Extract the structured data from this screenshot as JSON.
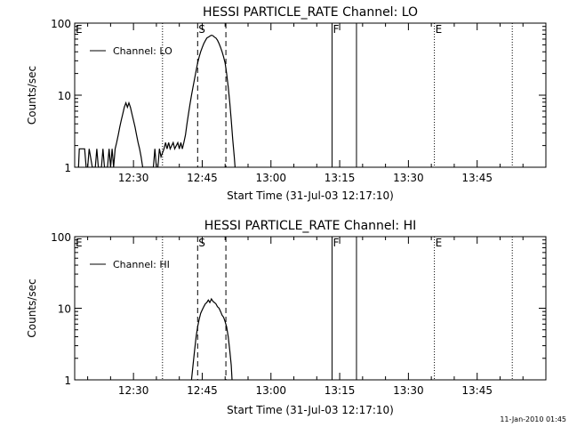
{
  "footer_timestamp": "11-Jan-2010 01:45",
  "chart_data": [
    {
      "type": "line",
      "title": "HESSI PARTICLE_RATE Channel: LO",
      "xlabel": "Start Time (31-Jul-03 12:17:10)",
      "ylabel": "Counts/sec",
      "yscale": "log",
      "ylim": [
        1,
        100
      ],
      "xlim": [
        "12:17:10",
        "14:00:00"
      ],
      "x_ticks": [
        "12:30",
        "12:45",
        "13:00",
        "13:15",
        "13:30",
        "13:45"
      ],
      "y_ticks": [
        "1",
        "10",
        "100"
      ],
      "legend": {
        "label": "Channel: LO",
        "position": "top-left"
      },
      "markers": [
        {
          "label": "E",
          "time": "12:17:10",
          "style": "none"
        },
        {
          "label": "",
          "time": "12:36:20",
          "style": "dotted"
        },
        {
          "label": "S",
          "time": "12:44:00",
          "style": "dashed"
        },
        {
          "label": "",
          "time": "12:50:10",
          "style": "dashed"
        },
        {
          "label": "F",
          "time": "13:13:20",
          "style": "solid"
        },
        {
          "label": "",
          "time": "13:18:40",
          "style": "solid"
        },
        {
          "label": "E",
          "time": "13:35:40",
          "style": "dotted"
        },
        {
          "label": "",
          "time": "13:52:40",
          "style": "dotted"
        }
      ],
      "series": [
        {
          "name": "Channel: LO",
          "points": [
            [
              "12:18:00",
              1.0
            ],
            [
              "12:18:10",
              1.8
            ],
            [
              "12:19:20",
              1.8
            ],
            [
              "12:19:40",
              1.0
            ],
            [
              "12:20:00",
              1.0
            ],
            [
              "12:20:20",
              1.8
            ],
            [
              "12:21:00",
              1.0
            ],
            [
              "12:21:40",
              1.0
            ],
            [
              "12:22:00",
              1.8
            ],
            [
              "12:22:20",
              1.0
            ],
            [
              "12:23:00",
              1.0
            ],
            [
              "12:23:20",
              1.8
            ],
            [
              "12:23:40",
              1.0
            ],
            [
              "12:24:20",
              1.0
            ],
            [
              "12:24:40",
              1.8
            ],
            [
              "12:25:00",
              1.0
            ],
            [
              "12:25:20",
              1.8
            ],
            [
              "12:25:40",
              1.0
            ],
            [
              "12:26:00",
              1.8
            ],
            [
              "12:26:20",
              2.2
            ],
            [
              "12:26:40",
              2.8
            ],
            [
              "12:27:00",
              3.6
            ],
            [
              "12:27:20",
              4.5
            ],
            [
              "12:27:40",
              5.5
            ],
            [
              "12:28:00",
              6.8
            ],
            [
              "12:28:20",
              7.8
            ],
            [
              "12:28:40",
              6.8
            ],
            [
              "12:29:00",
              7.8
            ],
            [
              "12:29:20",
              6.8
            ],
            [
              "12:29:40",
              5.5
            ],
            [
              "12:30:00",
              4.5
            ],
            [
              "12:30:20",
              3.6
            ],
            [
              "12:30:40",
              2.8
            ],
            [
              "12:31:00",
              2.2
            ],
            [
              "12:31:20",
              1.8
            ],
            [
              "12:31:40",
              1.4
            ],
            [
              "12:32:00",
              1.0
            ],
            [
              "12:34:20",
              1.0
            ],
            [
              "12:34:40",
              1.8
            ],
            [
              "12:35:00",
              1.0
            ],
            [
              "12:35:20",
              1.0
            ],
            [
              "12:35:40",
              1.8
            ],
            [
              "12:36:00",
              1.4
            ],
            [
              "12:36:40",
              1.8
            ],
            [
              "12:37:00",
              2.2
            ],
            [
              "12:37:20",
              1.8
            ],
            [
              "12:37:40",
              2.2
            ],
            [
              "12:38:00",
              1.8
            ],
            [
              "12:38:40",
              2.2
            ],
            [
              "12:39:00",
              1.8
            ],
            [
              "12:39:40",
              2.2
            ],
            [
              "12:40:00",
              1.8
            ],
            [
              "12:40:20",
              2.2
            ],
            [
              "12:40:40",
              1.8
            ],
            [
              "12:41:00",
              2.2
            ],
            [
              "12:41:20",
              2.8
            ],
            [
              "12:41:40",
              4.0
            ],
            [
              "12:42:00",
              5.5
            ],
            [
              "12:42:20",
              7.5
            ],
            [
              "12:42:40",
              10.0
            ],
            [
              "12:43:00",
              13.0
            ],
            [
              "12:43:20",
              17.0
            ],
            [
              "12:43:40",
              22.0
            ],
            [
              "12:44:00",
              28.0
            ],
            [
              "12:44:20",
              34.0
            ],
            [
              "12:44:40",
              40.0
            ],
            [
              "12:45:00",
              46.0
            ],
            [
              "12:45:20",
              52.0
            ],
            [
              "12:45:40",
              57.0
            ],
            [
              "12:46:00",
              62.0
            ],
            [
              "12:46:20",
              64.0
            ],
            [
              "12:46:40",
              66.0
            ],
            [
              "12:47:00",
              68.0
            ],
            [
              "12:47:20",
              67.0
            ],
            [
              "12:47:40",
              64.0
            ],
            [
              "12:48:00",
              62.0
            ],
            [
              "12:48:20",
              58.0
            ],
            [
              "12:48:40",
              52.0
            ],
            [
              "12:49:00",
              46.0
            ],
            [
              "12:49:20",
              40.0
            ],
            [
              "12:49:40",
              34.0
            ],
            [
              "12:50:00",
              28.0
            ],
            [
              "12:50:20",
              20.0
            ],
            [
              "12:50:40",
              13.0
            ],
            [
              "12:51:00",
              8.0
            ],
            [
              "12:51:20",
              4.5
            ],
            [
              "12:51:40",
              2.4
            ],
            [
              "12:52:00",
              1.4
            ],
            [
              "12:52:10",
              1.0
            ]
          ]
        }
      ]
    },
    {
      "type": "line",
      "title": "HESSI PARTICLE_RATE Channel: HI",
      "xlabel": "Start Time (31-Jul-03 12:17:10)",
      "ylabel": "Counts/sec",
      "yscale": "log",
      "ylim": [
        1,
        100
      ],
      "xlim": [
        "12:17:10",
        "14:00:00"
      ],
      "x_ticks": [
        "12:30",
        "12:45",
        "13:00",
        "13:15",
        "13:30",
        "13:45"
      ],
      "y_ticks": [
        "1",
        "10",
        "100"
      ],
      "legend": {
        "label": "Channel: HI",
        "position": "top-left"
      },
      "markers": [
        {
          "label": "E",
          "time": "12:17:10",
          "style": "none"
        },
        {
          "label": "",
          "time": "12:36:20",
          "style": "dotted"
        },
        {
          "label": "S",
          "time": "12:44:00",
          "style": "dashed"
        },
        {
          "label": "",
          "time": "12:50:10",
          "style": "dashed"
        },
        {
          "label": "F",
          "time": "13:13:20",
          "style": "solid"
        },
        {
          "label": "",
          "time": "13:18:40",
          "style": "solid"
        },
        {
          "label": "E",
          "time": "13:35:40",
          "style": "dotted"
        },
        {
          "label": "",
          "time": "13:52:40",
          "style": "dotted"
        }
      ],
      "series": [
        {
          "name": "Channel: HI",
          "points": [
            [
              "12:42:40",
              1.0
            ],
            [
              "12:43:00",
              1.6
            ],
            [
              "12:43:20",
              2.6
            ],
            [
              "12:43:40",
              4.0
            ],
            [
              "12:44:00",
              5.5
            ],
            [
              "12:44:20",
              7.0
            ],
            [
              "12:44:40",
              8.5
            ],
            [
              "12:45:00",
              9.5
            ],
            [
              "12:45:20",
              10.5
            ],
            [
              "12:45:40",
              11.5
            ],
            [
              "12:46:00",
              12.0
            ],
            [
              "12:46:20",
              13.0
            ],
            [
              "12:46:40",
              12.0
            ],
            [
              "12:47:00",
              13.5
            ],
            [
              "12:47:20",
              12.5
            ],
            [
              "12:47:40",
              12.0
            ],
            [
              "12:48:00",
              11.5
            ],
            [
              "12:48:20",
              10.5
            ],
            [
              "12:48:40",
              10.0
            ],
            [
              "12:49:00",
              9.0
            ],
            [
              "12:49:20",
              8.0
            ],
            [
              "12:49:40",
              7.5
            ],
            [
              "12:50:00",
              6.5
            ],
            [
              "12:50:20",
              5.5
            ],
            [
              "12:50:40",
              4.0
            ],
            [
              "12:51:00",
              2.6
            ],
            [
              "12:51:20",
              1.6
            ],
            [
              "12:51:30",
              1.0
            ]
          ]
        }
      ]
    }
  ]
}
